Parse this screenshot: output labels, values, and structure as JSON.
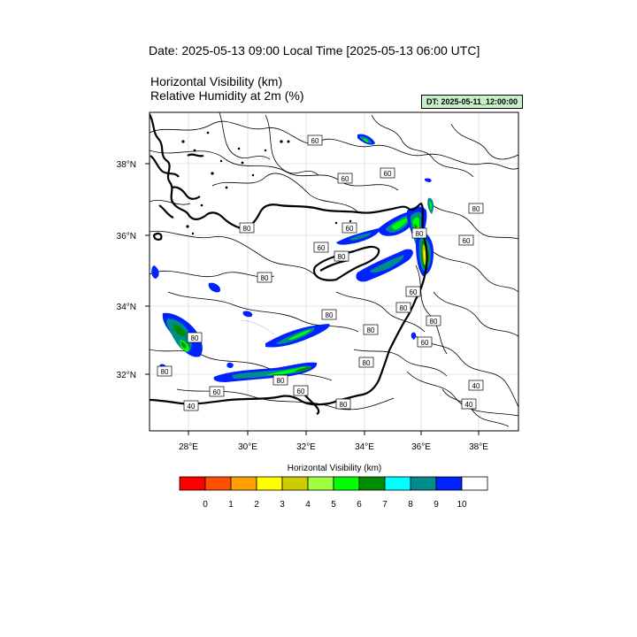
{
  "header": {
    "date_title": "Date: 2025-05-13  09:00 Local Time [2025-05-13  06:00 UTC]",
    "var_title_1": "Horizontal Visibility   (km)",
    "var_title_2": "Relative Humidity at 2m   (%)",
    "dt_badge": "DT: 2025-05-11_12:00:00"
  },
  "map": {
    "lat_labels": [
      "38°N",
      "36°N",
      "34°N",
      "32°N"
    ],
    "lon_labels": [
      "28°E",
      "30°E",
      "32°E",
      "34°E",
      "36°E",
      "38°E"
    ],
    "contour_labels": [
      "60",
      "60",
      "60",
      "80",
      "60",
      "80",
      "60",
      "60",
      "80",
      "80",
      "80",
      "80",
      "60",
      "80",
      "80",
      "80",
      "80",
      "80",
      "60",
      "60",
      "80",
      "60",
      "40",
      "40",
      "40",
      "80",
      "80"
    ],
    "colors": {
      "land_line": "#000000",
      "contour": "#000000",
      "grid": "#cfcfcf"
    }
  },
  "legend": {
    "title": "Horizontal Visibility  (km)",
    "colors": [
      "#ff0000",
      "#ff4f00",
      "#ffa000",
      "#ffff00",
      "#cccc00",
      "#a0ff40",
      "#00ff00",
      "#008c00",
      "#00ffff",
      "#008c8c",
      "#0022ff",
      "#ffffff"
    ],
    "tick_labels": [
      "0",
      "1",
      "2",
      "3",
      "4",
      "5",
      "6",
      "7",
      "8",
      "9",
      "10"
    ]
  }
}
